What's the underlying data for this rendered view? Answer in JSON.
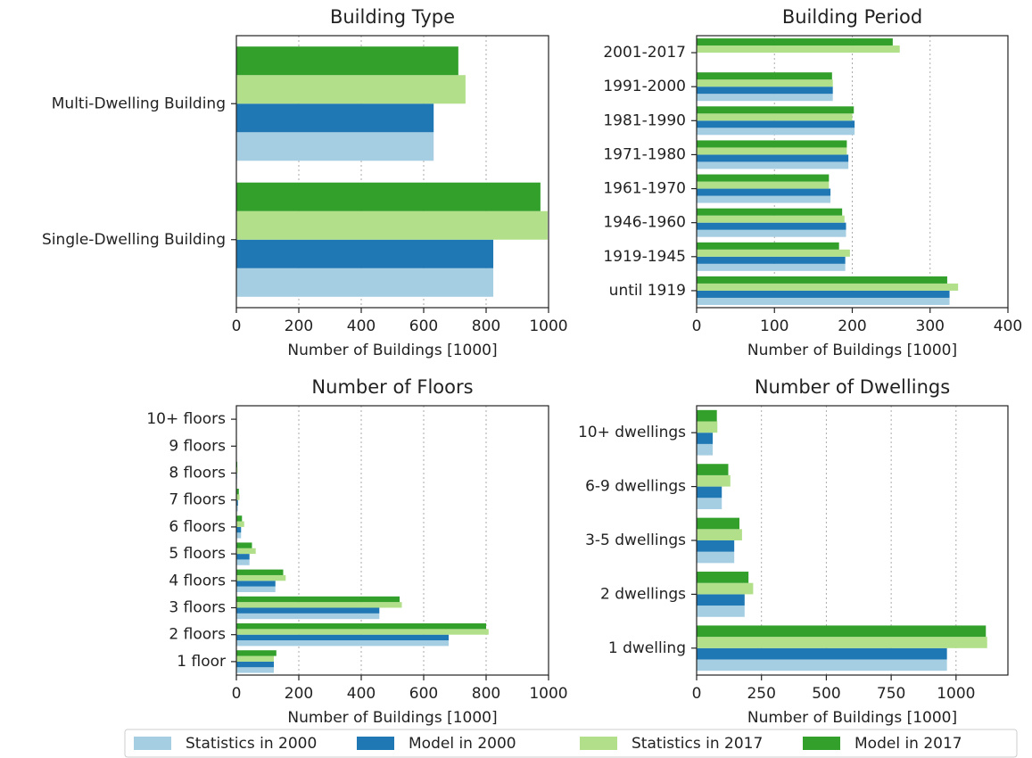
{
  "chart_data": [
    {
      "type": "bar",
      "orientation": "horizontal",
      "title": "Building Type",
      "x_label": "Number of Buildings [1000]",
      "categories": [
        "Single-Dwelling Building",
        "Multi-Dwelling Building"
      ],
      "series": [
        {
          "name": "Statistics in 2000",
          "color": "#a6cee3",
          "values": [
            823,
            632
          ]
        },
        {
          "name": "Model in 2000",
          "color": "#1f78b4",
          "values": [
            823,
            632
          ]
        },
        {
          "name": "Statistics in 2017",
          "color": "#b2df8a",
          "values": [
            997,
            734
          ]
        },
        {
          "name": "Model in 2017",
          "color": "#33a02c",
          "values": [
            974,
            711
          ]
        }
      ],
      "xlim": [
        0,
        1000
      ],
      "xticks": [
        0,
        200,
        400,
        600,
        800,
        1000
      ],
      "grid": true,
      "legend": "bottom"
    },
    {
      "type": "bar",
      "orientation": "horizontal",
      "title": "Building Period",
      "x_label": "Number of Buildings [1000]",
      "categories": [
        "until 1919",
        "1919-1945",
        "1946-1960",
        "1961-1970",
        "1971-1980",
        "1981-1990",
        "1991-2000",
        "2001-2017"
      ],
      "series": [
        {
          "name": "Statistics in 2000",
          "color": "#a6cee3",
          "values": [
            325,
            191,
            192,
            172,
            195,
            203,
            175,
            null
          ]
        },
        {
          "name": "Model in 2000",
          "color": "#1f78b4",
          "values": [
            325,
            191,
            192,
            172,
            195,
            203,
            175,
            null
          ]
        },
        {
          "name": "Statistics in 2017",
          "color": "#b2df8a",
          "values": [
            336,
            197,
            190,
            170,
            193,
            200,
            175,
            261
          ]
        },
        {
          "name": "Model in 2017",
          "color": "#33a02c",
          "values": [
            322,
            183,
            187,
            170,
            193,
            202,
            174,
            252
          ]
        }
      ],
      "xlim": [
        0,
        400
      ],
      "xticks": [
        0,
        100,
        200,
        300,
        400
      ],
      "grid": true
    },
    {
      "type": "bar",
      "orientation": "horizontal",
      "title": "Number of Floors",
      "x_label": "Number of Buildings [1000]",
      "categories": [
        "1 floor",
        "2 floors",
        "3 floors",
        "4 floors",
        "5 floors",
        "6 floors",
        "7 floors",
        "8 floors",
        "9 floors",
        "10+ floors"
      ],
      "series": [
        {
          "name": "Statistics in 2000",
          "color": "#a6cee3",
          "values": [
            120,
            680,
            458,
            125,
            42,
            15,
            5,
            2,
            1,
            1
          ]
        },
        {
          "name": "Model in 2000",
          "color": "#1f78b4",
          "values": [
            120,
            680,
            458,
            125,
            42,
            15,
            5,
            2,
            1,
            1
          ]
        },
        {
          "name": "Statistics in 2017",
          "color": "#b2df8a",
          "values": [
            120,
            808,
            530,
            158,
            62,
            25,
            10,
            4,
            2,
            1
          ]
        },
        {
          "name": "Model in 2017",
          "color": "#33a02c",
          "values": [
            128,
            800,
            523,
            150,
            50,
            18,
            8,
            3,
            1,
            1
          ]
        }
      ],
      "xlim": [
        0,
        1000
      ],
      "xticks": [
        0,
        200,
        400,
        600,
        800,
        1000
      ],
      "grid": true
    },
    {
      "type": "bar",
      "orientation": "horizontal",
      "title": "Number of Dwellings",
      "x_label": "Number of Buildings [1000]",
      "categories": [
        "1 dwelling",
        "2 dwellings",
        "3-5 dwellings",
        "6-9 dwellings",
        "10+ dwellings"
      ],
      "series": [
        {
          "name": "Statistics in 2000",
          "color": "#a6cee3",
          "values": [
            965,
            185,
            145,
            97,
            62
          ]
        },
        {
          "name": "Model in 2000",
          "color": "#1f78b4",
          "values": [
            965,
            185,
            145,
            97,
            62
          ]
        },
        {
          "name": "Statistics in 2017",
          "color": "#b2df8a",
          "values": [
            1120,
            218,
            175,
            130,
            80
          ]
        },
        {
          "name": "Model in 2017",
          "color": "#33a02c",
          "values": [
            1115,
            200,
            165,
            122,
            78
          ]
        }
      ],
      "xlim": [
        0,
        1200
      ],
      "xticks": [
        0,
        250,
        500,
        750,
        1000
      ],
      "grid": true
    }
  ]
}
